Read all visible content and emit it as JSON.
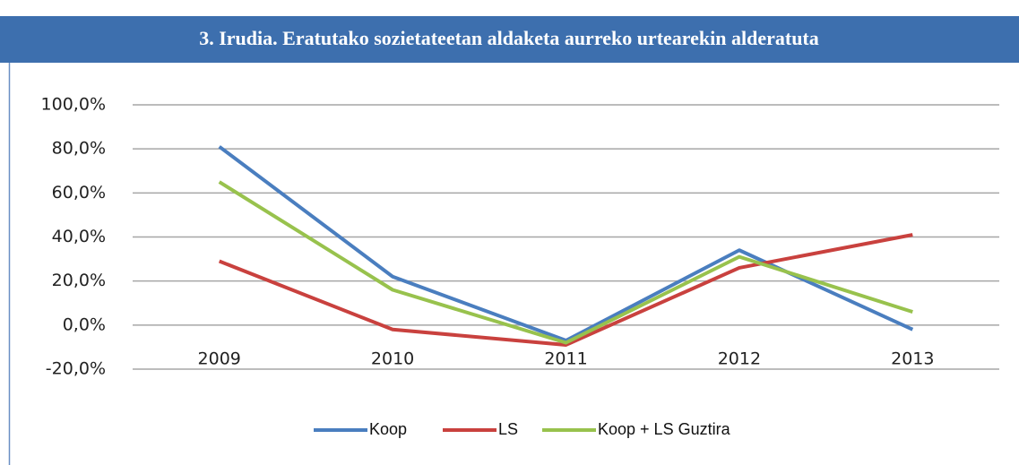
{
  "chart_data": {
    "type": "line",
    "title": "3. Irudia. Eratutako sozietateetan aldaketa aurreko urtearekin alderatuta",
    "categories": [
      "2009",
      "2010",
      "2011",
      "2012",
      "2013"
    ],
    "series": [
      {
        "name": "Koop",
        "color": "#4a7ebf",
        "values": [
          81,
          22,
          -7,
          34,
          -2
        ]
      },
      {
        "name": "LS",
        "color": "#c9413e",
        "values": [
          29,
          -2,
          -9,
          26,
          41
        ]
      },
      {
        "name": "Koop + LS Guztira",
        "color": "#98c24d",
        "values": [
          65,
          16,
          -8,
          31,
          6
        ]
      }
    ],
    "ylim": [
      -20,
      100
    ],
    "yticks": [
      {
        "value": -20,
        "label": "-20,0%"
      },
      {
        "value": 0,
        "label": "0,0%"
      },
      {
        "value": 20,
        "label": "20,0%"
      },
      {
        "value": 40,
        "label": "40,0%"
      },
      {
        "value": 60,
        "label": "60,0%"
      },
      {
        "value": 80,
        "label": "80,0%"
      },
      {
        "value": 100,
        "label": "100,0%"
      }
    ],
    "grid": true
  }
}
